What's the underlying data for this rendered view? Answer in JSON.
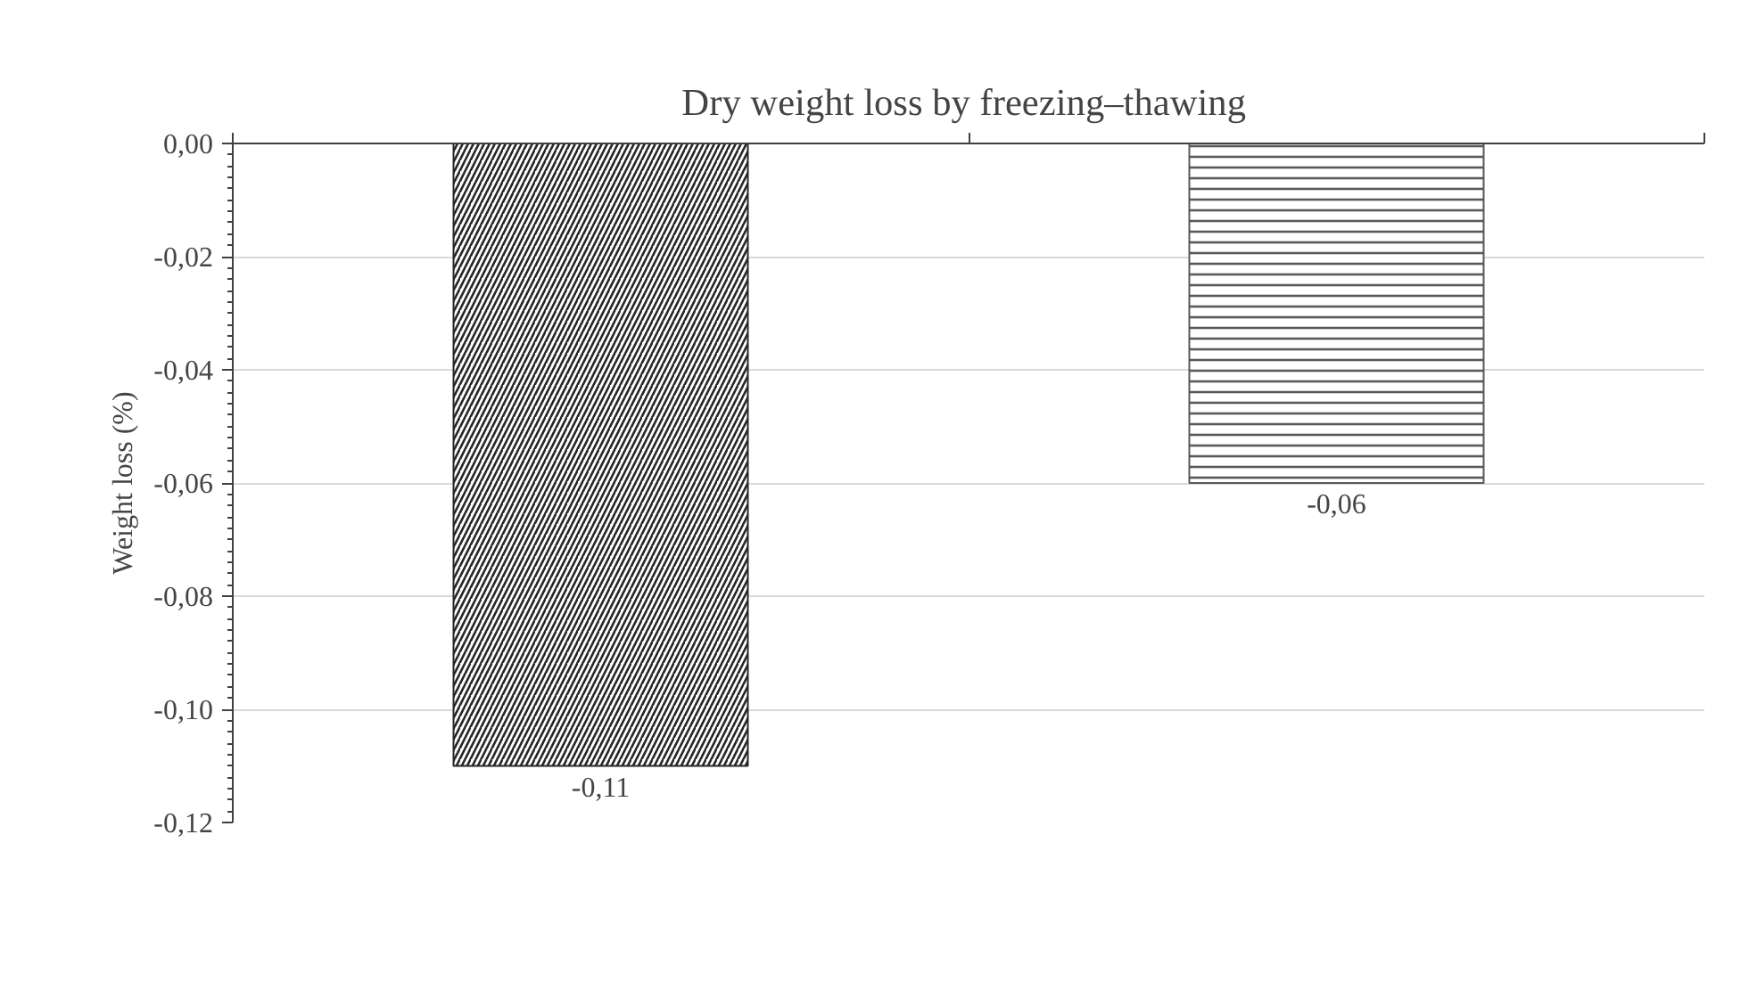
{
  "chart_data": {
    "type": "bar",
    "title": "Dry weight  loss by freezing–thawing",
    "ylabel": "Weight loss (%)",
    "categories": [
      null,
      null
    ],
    "values": [
      -0.11,
      -0.06
    ],
    "value_labels": [
      "-0,11",
      "-0,06"
    ],
    "colors": [
      "#262626",
      "#595959"
    ],
    "ylim": [
      -0.12,
      0
    ],
    "yticks": [
      {
        "value": -0.12,
        "label": "-0,12"
      },
      {
        "value": -0.1,
        "label": "-0,10"
      },
      {
        "value": -0.08,
        "label": "-0,08"
      },
      {
        "value": -0.06,
        "label": "-0,06"
      },
      {
        "value": -0.04,
        "label": "-0,04"
      },
      {
        "value": -0.02,
        "label": "-0,02"
      },
      {
        "value": 0,
        "label": "0,00"
      }
    ],
    "grid": "y",
    "tick_labels": "y"
  }
}
